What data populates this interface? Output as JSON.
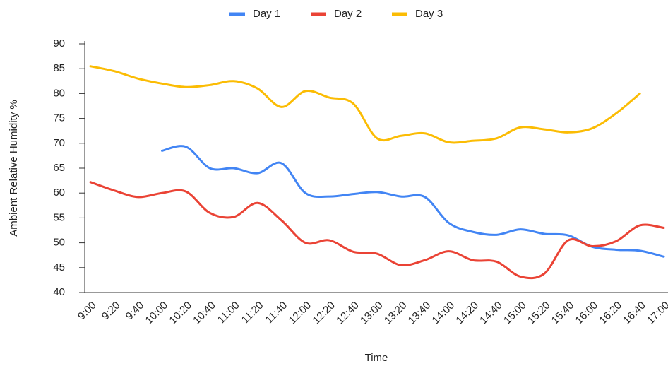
{
  "chart_data": {
    "type": "line",
    "x_label": "Time",
    "y_label": "Ambient Relative Humidity %",
    "categories": [
      "9:00",
      "9:20",
      "9:40",
      "10:00",
      "10:20",
      "10:40",
      "11:00",
      "11:20",
      "11:40",
      "12:00",
      "12:20",
      "12:40",
      "13:00",
      "13:20",
      "13:40",
      "14:00",
      "14:20",
      "14:40",
      "15:00",
      "15:20",
      "15:40",
      "16:00",
      "16:20",
      "16:40",
      "17:00"
    ],
    "series": [
      {
        "name": "Day 1",
        "color": "#4285f4",
        "values": [
          null,
          null,
          null,
          68.5,
          69.3,
          65,
          65,
          64,
          66,
          60,
          59.3,
          59.8,
          60.2,
          59.3,
          59.2,
          54,
          52.2,
          51.6,
          52.7,
          51.8,
          51.5,
          49.2,
          48.6,
          48.4,
          47.2
        ]
      },
      {
        "name": "Day 2",
        "color": "#ea4335",
        "values": [
          62.2,
          60.5,
          59.2,
          60,
          60.3,
          56,
          55.2,
          58,
          54.5,
          50,
          50.5,
          48.2,
          47.8,
          45.5,
          46.5,
          48.3,
          46.5,
          46.2,
          43.2,
          43.8,
          50.5,
          49.3,
          50.3,
          53.5,
          53
        ]
      },
      {
        "name": "Day 3",
        "color": "#fbbc04",
        "values": [
          85.5,
          84.5,
          83,
          82,
          81.3,
          81.7,
          82.5,
          81,
          77.3,
          80.5,
          79.2,
          78,
          71,
          71.5,
          72,
          70.2,
          70.5,
          71,
          73.2,
          72.8,
          72.2,
          73,
          76,
          80,
          null
        ]
      }
    ],
    "ylim": [
      40,
      90
    ],
    "yticks": [
      40,
      45,
      50,
      55,
      60,
      65,
      70,
      75,
      80,
      85,
      90
    ],
    "legend": "top"
  }
}
